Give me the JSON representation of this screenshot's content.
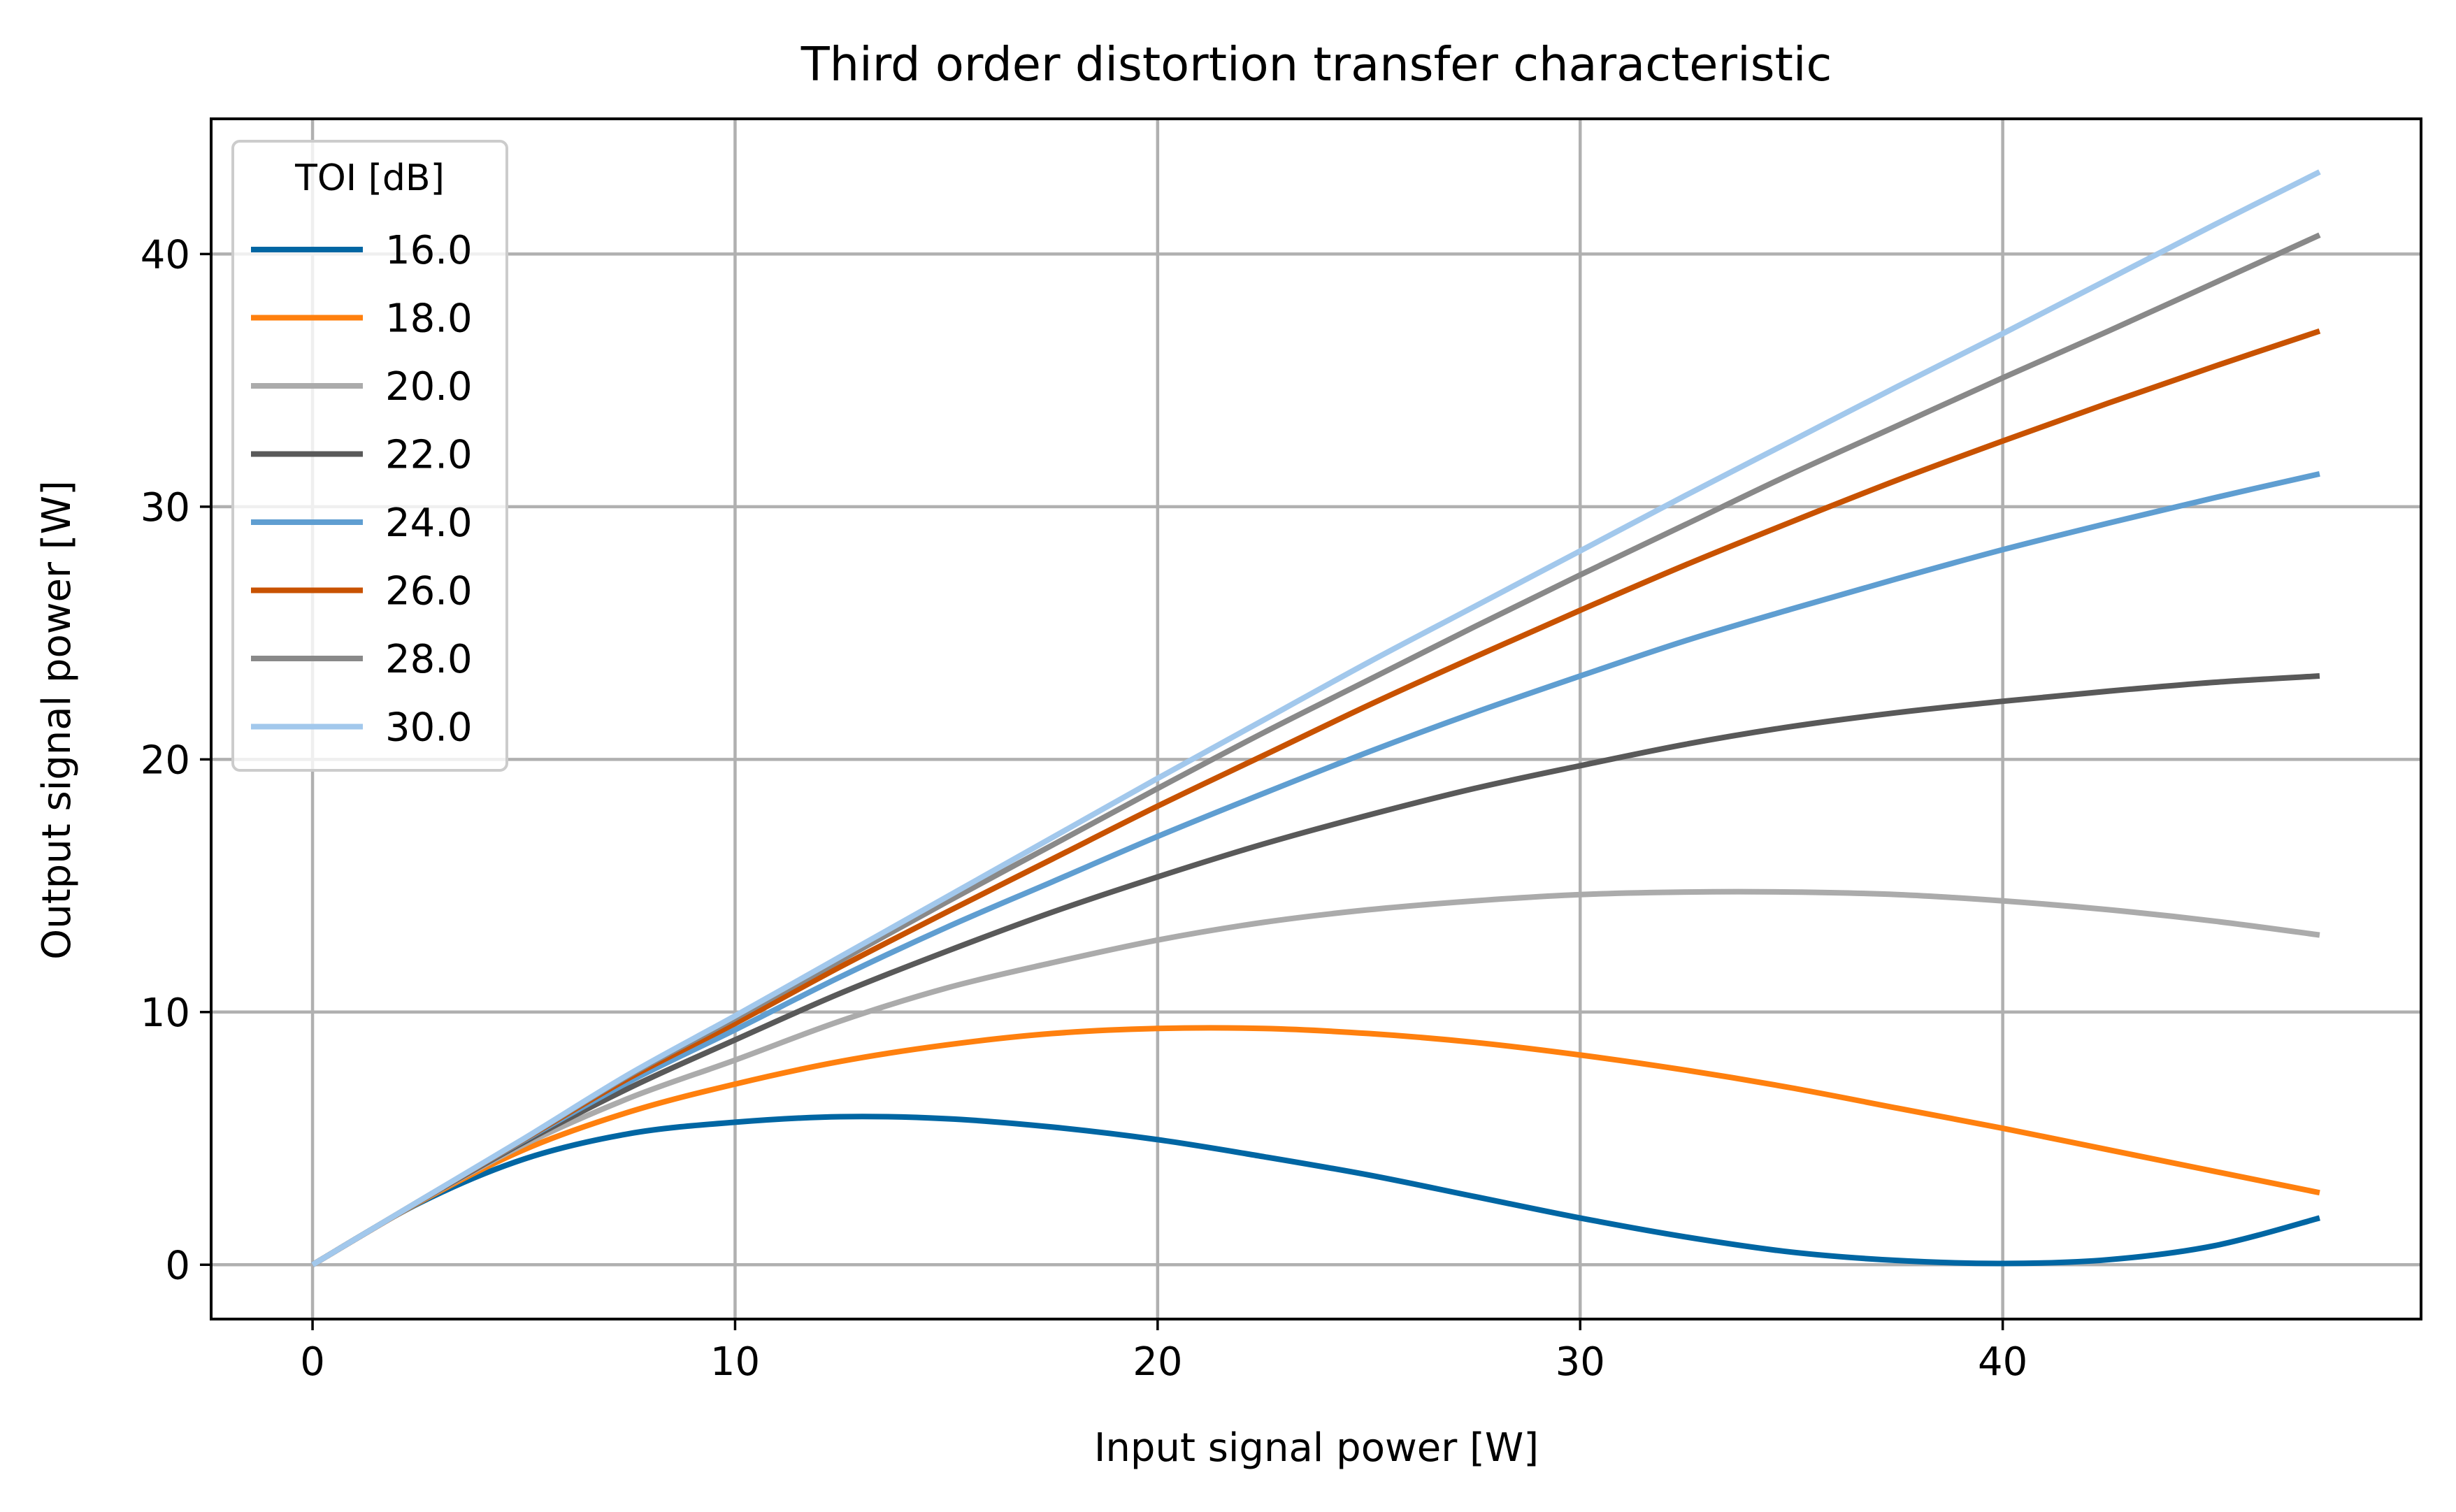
{
  "chart_data": {
    "type": "line",
    "title": "Third order distortion transfer characteristic",
    "xlabel": "Input signal power [W]",
    "ylabel": "Output signal power [W]",
    "xlim": [
      -2.4,
      49.9
    ],
    "ylim": [
      -2.15,
      45.35
    ],
    "xticks": [
      0,
      10,
      20,
      30,
      40
    ],
    "yticks": [
      0,
      10,
      20,
      30,
      40
    ],
    "grid": true,
    "legend": {
      "title": "TOI [dB]",
      "placement": "top-left"
    },
    "series": [
      {
        "name": "16.0",
        "color": "#0066a3",
        "x": [
          0,
          2.5,
          5,
          7.5,
          10,
          12.5,
          15,
          17.5,
          20,
          22.5,
          25,
          27.5,
          30,
          32.5,
          35,
          37.5,
          40,
          42.5,
          45,
          47.5
        ],
        "y": [
          0,
          2.42,
          4.18,
          5.19,
          5.64,
          5.86,
          5.78,
          5.45,
          4.95,
          4.28,
          3.55,
          2.7,
          1.85,
          1.1,
          0.5,
          0.17,
          0.05,
          0.2,
          0.75,
          1.85
        ]
      },
      {
        "name": "18.0",
        "color": "#ff800e",
        "x": [
          0,
          2.5,
          5,
          7.5,
          10,
          12.5,
          15,
          17.5,
          20,
          22.5,
          25,
          27.5,
          30,
          32.5,
          35,
          37.5,
          40,
          42.5,
          45,
          47.5
        ],
        "y": [
          0,
          2.45,
          4.55,
          6.05,
          7.15,
          8.05,
          8.7,
          9.15,
          9.35,
          9.35,
          9.15,
          8.8,
          8.3,
          7.7,
          7.0,
          6.2,
          5.4,
          4.55,
          3.7,
          2.85
        ]
      },
      {
        "name": "20.0",
        "color": "#ababab",
        "x": [
          0,
          2.5,
          5,
          7.5,
          10,
          12.5,
          15,
          17.5,
          20,
          22.5,
          25,
          27.5,
          30,
          32.5,
          35,
          37.5,
          40,
          42.5,
          45,
          47.5
        ],
        "y": [
          0,
          2.47,
          4.75,
          6.6,
          8.1,
          9.65,
          10.95,
          11.95,
          12.85,
          13.55,
          14.05,
          14.4,
          14.65,
          14.75,
          14.75,
          14.65,
          14.4,
          14.05,
          13.6,
          13.05
        ]
      },
      {
        "name": "22.0",
        "color": "#595959",
        "x": [
          0,
          2.5,
          5,
          7.5,
          10,
          12.5,
          15,
          17.5,
          20,
          22.5,
          25,
          27.5,
          30,
          32.5,
          35,
          37.5,
          40,
          42.5,
          45,
          47.5
        ],
        "y": [
          0,
          2.48,
          4.85,
          7.0,
          8.9,
          10.75,
          12.4,
          13.95,
          15.35,
          16.65,
          17.8,
          18.85,
          19.75,
          20.6,
          21.3,
          21.85,
          22.3,
          22.7,
          23.05,
          23.3
        ]
      },
      {
        "name": "24.0",
        "color": "#5f9ed1",
        "x": [
          0,
          2.5,
          5,
          7.5,
          10,
          12.5,
          15,
          17.5,
          20,
          22.5,
          25,
          27.5,
          30,
          32.5,
          35,
          37.5,
          40,
          42.5,
          45,
          47.5
        ],
        "y": [
          0,
          2.49,
          4.92,
          7.25,
          9.3,
          11.4,
          13.35,
          15.15,
          16.95,
          18.65,
          20.3,
          21.85,
          23.3,
          24.7,
          25.95,
          27.15,
          28.3,
          29.35,
          30.35,
          31.3
        ]
      },
      {
        "name": "26.0",
        "color": "#c85200",
        "x": [
          0,
          2.5,
          5,
          7.5,
          10,
          12.5,
          15,
          17.5,
          20,
          22.5,
          25,
          27.5,
          30,
          32.5,
          35,
          37.5,
          40,
          42.5,
          45,
          47.5
        ],
        "y": [
          0,
          2.49,
          4.95,
          7.4,
          9.55,
          11.8,
          13.95,
          16.05,
          18.15,
          20.15,
          22.15,
          24.05,
          25.9,
          27.7,
          29.4,
          31.05,
          32.6,
          34.1,
          35.55,
          36.95
        ]
      },
      {
        "name": "28.0",
        "color": "#898989",
        "x": [
          0,
          2.5,
          5,
          7.5,
          10,
          12.5,
          15,
          17.5,
          20,
          22.5,
          25,
          27.5,
          30,
          32.5,
          35,
          37.5,
          40,
          42.5,
          45,
          47.5
        ],
        "y": [
          0,
          2.5,
          4.97,
          7.5,
          9.75,
          12.05,
          14.35,
          16.6,
          18.85,
          21.05,
          23.15,
          25.25,
          27.3,
          29.3,
          31.3,
          33.2,
          35.1,
          36.95,
          38.85,
          40.75
        ]
      },
      {
        "name": "30.0",
        "color": "#a2c8ec",
        "x": [
          0,
          2.5,
          5,
          7.5,
          10,
          12.5,
          15,
          17.5,
          20,
          22.5,
          25,
          27.5,
          30,
          32.5,
          35,
          37.5,
          40,
          42.5,
          45,
          47.5
        ],
        "y": [
          0,
          2.5,
          4.99,
          7.55,
          9.85,
          12.2,
          14.55,
          16.9,
          19.25,
          21.55,
          23.85,
          26.05,
          28.25,
          30.45,
          32.6,
          34.75,
          36.85,
          39.0,
          41.15,
          43.25
        ]
      }
    ]
  }
}
